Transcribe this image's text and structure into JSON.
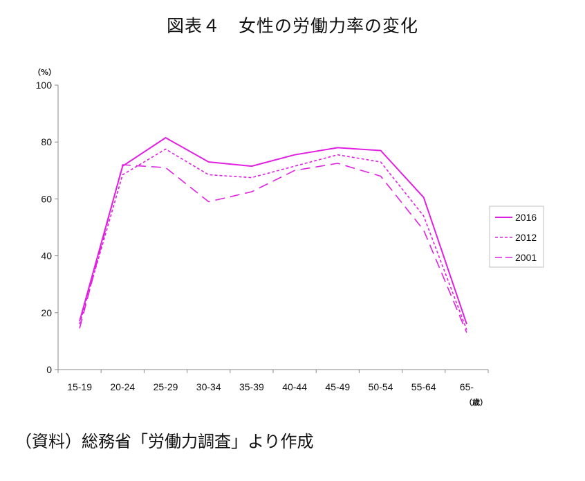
{
  "page": {
    "title": "図表４　女性の労働力率の変化",
    "source": "（資料）総務省「労働力調査」より作成"
  },
  "chart_data": {
    "type": "line",
    "title": "図表４　女性の労働力率の変化",
    "ylabel": "（%）",
    "xlabel": "（歳）",
    "ylim": [
      0,
      100
    ],
    "yticks": [
      0,
      20,
      40,
      60,
      80,
      100
    ],
    "categories": [
      "15-19",
      "20-24",
      "25-29",
      "30-34",
      "35-39",
      "40-44",
      "45-49",
      "50-54",
      "55-64",
      "65-"
    ],
    "grid": false,
    "legend_position": "right",
    "line_color": "#e020e0",
    "series": [
      {
        "name": "2016",
        "style": "solid",
        "values": [
          17.0,
          71.5,
          81.5,
          73.0,
          71.5,
          75.5,
          78.0,
          77.0,
          60.5,
          16.0
        ]
      },
      {
        "name": "2012",
        "style": "dotted",
        "values": [
          16.0,
          68.5,
          77.5,
          68.5,
          67.5,
          71.5,
          75.5,
          73.0,
          54.0,
          14.0
        ]
      },
      {
        "name": "2001",
        "style": "dashed",
        "values": [
          14.5,
          72.0,
          71.0,
          59.0,
          62.5,
          70.0,
          72.5,
          68.0,
          49.0,
          13.0
        ]
      }
    ]
  }
}
